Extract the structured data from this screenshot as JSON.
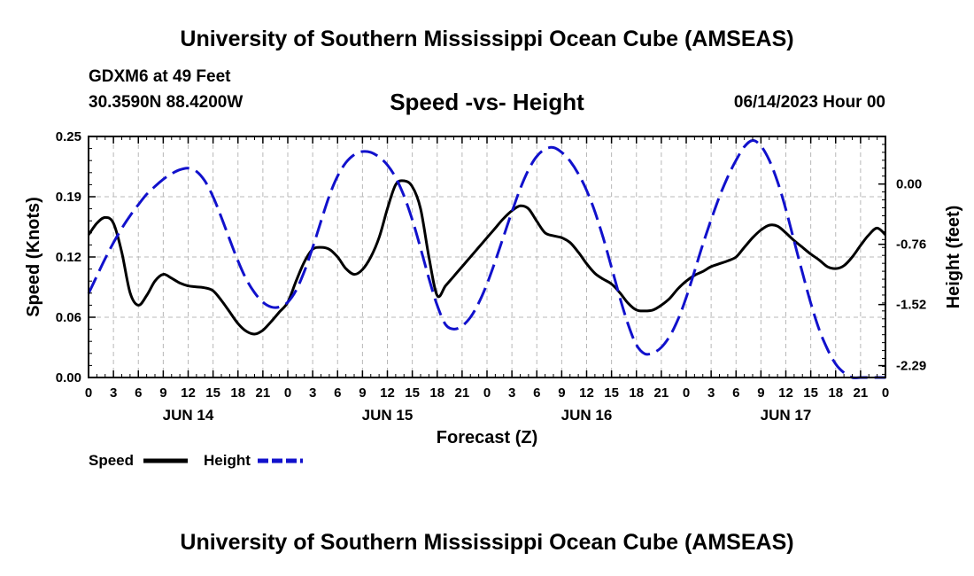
{
  "page": {
    "title": "University of Southern Mississippi Ocean Cube (AMSEAS)",
    "footer_title": "University of Southern Mississippi Ocean Cube (AMSEAS)",
    "station": "GDXM6 at 49 Feet",
    "coordinates": "30.3590N  88.4200W",
    "subtitle": "Speed -vs- Height",
    "date_hour": "06/14/2023 Hour 00"
  },
  "chart_data": {
    "type": "line",
    "title": "Speed -vs- Height",
    "xlabel": "Forecast (Z)",
    "ylabel": "Speed (Knots)",
    "y2label": "Height (feet)",
    "x_range": [
      0,
      96
    ],
    "ylim": [
      0.0,
      0.25
    ],
    "y2lim": [
      -2.44,
      0.6
    ],
    "grid": true,
    "x_tick_labels": [
      "0",
      "3",
      "6",
      "9",
      "12",
      "15",
      "18",
      "21",
      "0",
      "3",
      "6",
      "9",
      "12",
      "15",
      "18",
      "21",
      "0",
      "3",
      "6",
      "9",
      "12",
      "15",
      "18",
      "21",
      "0",
      "3",
      "6",
      "9",
      "12",
      "15",
      "18",
      "21",
      "0"
    ],
    "day_labels": [
      {
        "hour": 12,
        "label": "JUN 14"
      },
      {
        "hour": 36,
        "label": "JUN 15"
      },
      {
        "hour": 60,
        "label": "JUN 16"
      },
      {
        "hour": 84,
        "label": "JUN 17"
      }
    ],
    "y_ticks": [
      {
        "value": 0.0,
        "label": "0.00"
      },
      {
        "value": 0.0625,
        "label": "0.06"
      },
      {
        "value": 0.125,
        "label": "0.12"
      },
      {
        "value": 0.1875,
        "label": "0.19"
      },
      {
        "value": 0.25,
        "label": "0.25"
      }
    ],
    "y2_ticks": [
      {
        "value": 0.0,
        "label": "0.00"
      },
      {
        "value": -0.76,
        "label": "-0.76"
      },
      {
        "value": -1.52,
        "label": "-1.52"
      },
      {
        "value": -2.29,
        "label": "-2.29"
      }
    ],
    "legend_position": "bottom-left",
    "series": [
      {
        "name": "Speed",
        "axis": "left",
        "color": "#000000",
        "style": "solid",
        "x": [
          0,
          1,
          2,
          3,
          4,
          5,
          6,
          7,
          8,
          9,
          10,
          11,
          12,
          13,
          14,
          15,
          16,
          17,
          18,
          19,
          20,
          21,
          22,
          23,
          24,
          25,
          26,
          27,
          28,
          29,
          30,
          31,
          32,
          33,
          34,
          35,
          36,
          37,
          38,
          39,
          40,
          41,
          42,
          43,
          44,
          45,
          46,
          47,
          48,
          49,
          50,
          51,
          52,
          53,
          54,
          55,
          56,
          57,
          58,
          59,
          60,
          61,
          62,
          63,
          64,
          65,
          66,
          67,
          68,
          69,
          70,
          71,
          72,
          73,
          74,
          75,
          76,
          77,
          78,
          79,
          80,
          81,
          82,
          83,
          84,
          85,
          86,
          87,
          88,
          89,
          90,
          91,
          92,
          93,
          94,
          95,
          96
        ],
        "values": [
          0.148,
          0.16,
          0.166,
          0.16,
          0.13,
          0.088,
          0.075,
          0.085,
          0.1,
          0.107,
          0.103,
          0.098,
          0.095,
          0.094,
          0.093,
          0.09,
          0.08,
          0.068,
          0.056,
          0.048,
          0.045,
          0.049,
          0.058,
          0.068,
          0.078,
          0.1,
          0.12,
          0.133,
          0.135,
          0.133,
          0.125,
          0.113,
          0.107,
          0.112,
          0.125,
          0.145,
          0.175,
          0.2,
          0.204,
          0.198,
          0.175,
          0.125,
          0.085,
          0.095,
          0.105,
          0.115,
          0.125,
          0.135,
          0.145,
          0.155,
          0.165,
          0.173,
          0.178,
          0.175,
          0.162,
          0.15,
          0.147,
          0.145,
          0.14,
          0.13,
          0.118,
          0.108,
          0.102,
          0.097,
          0.088,
          0.077,
          0.07,
          0.069,
          0.07,
          0.075,
          0.082,
          0.092,
          0.1,
          0.106,
          0.11,
          0.115,
          0.118,
          0.121,
          0.125,
          0.135,
          0.145,
          0.153,
          0.158,
          0.157,
          0.15,
          0.142,
          0.135,
          0.128,
          0.122,
          0.115,
          0.113,
          0.116,
          0.125,
          0.137,
          0.148,
          0.155,
          0.148
        ]
      },
      {
        "name": "Height",
        "axis": "right",
        "color": "#1111cc",
        "style": "dashed",
        "x": [
          0,
          1,
          2,
          3,
          4,
          5,
          6,
          7,
          8,
          9,
          10,
          11,
          12,
          13,
          14,
          15,
          16,
          17,
          18,
          19,
          20,
          21,
          22,
          23,
          24,
          25,
          26,
          27,
          28,
          29,
          30,
          31,
          32,
          33,
          34,
          35,
          36,
          37,
          38,
          39,
          40,
          41,
          42,
          43,
          44,
          45,
          46,
          47,
          48,
          49,
          50,
          51,
          52,
          53,
          54,
          55,
          56,
          57,
          58,
          59,
          60,
          61,
          62,
          63,
          64,
          65,
          66,
          67,
          68,
          69,
          70,
          71,
          72,
          73,
          74,
          75,
          76,
          77,
          78,
          79,
          80,
          81,
          82,
          83,
          84,
          85,
          86,
          87,
          88,
          89,
          90,
          91,
          92,
          93,
          94,
          95,
          96
        ],
        "values": [
          -1.38,
          -1.16,
          -0.94,
          -0.74,
          -0.56,
          -0.4,
          -0.26,
          -0.13,
          -0.03,
          0.06,
          0.13,
          0.18,
          0.2,
          0.16,
          0.04,
          -0.16,
          -0.42,
          -0.7,
          -0.97,
          -1.2,
          -1.37,
          -1.49,
          -1.55,
          -1.55,
          -1.49,
          -1.34,
          -1.1,
          -0.8,
          -0.47,
          -0.15,
          0.1,
          0.27,
          0.37,
          0.41,
          0.4,
          0.34,
          0.24,
          0.08,
          -0.15,
          -0.45,
          -0.81,
          -1.19,
          -1.53,
          -1.77,
          -1.83,
          -1.79,
          -1.68,
          -1.5,
          -1.26,
          -0.97,
          -0.66,
          -0.35,
          -0.06,
          0.18,
          0.35,
          0.44,
          0.46,
          0.4,
          0.29,
          0.13,
          -0.08,
          -0.35,
          -0.68,
          -1.05,
          -1.43,
          -1.77,
          -2.03,
          -2.14,
          -2.13,
          -2.06,
          -1.92,
          -1.71,
          -1.43,
          -1.1,
          -0.76,
          -0.45,
          -0.16,
          0.09,
          0.3,
          0.47,
          0.55,
          0.48,
          0.3,
          0.03,
          -0.32,
          -0.72,
          -1.12,
          -1.5,
          -1.83,
          -2.08,
          -2.27,
          -2.38,
          -2.46,
          -2.5,
          -2.52,
          -2.52,
          -2.52
        ]
      }
    ]
  }
}
